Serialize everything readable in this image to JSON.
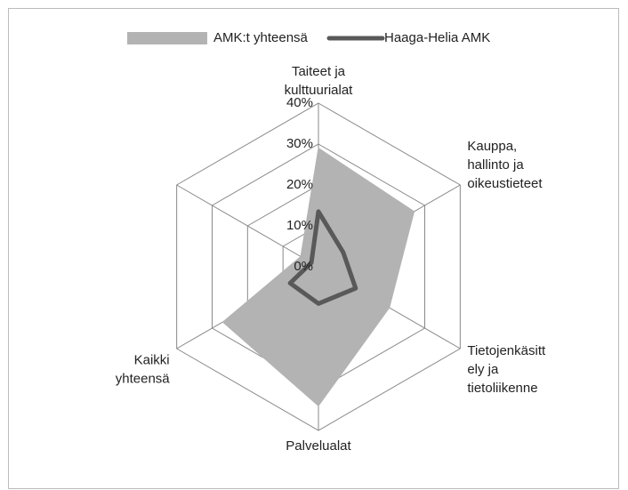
{
  "chart_data": {
    "type": "radar",
    "categories": [
      "Taiteet ja kulttuurialat",
      "Kauppa, hallinto ja oikeustieteet",
      "Tietojenkäsittely ja tietoliikenne",
      "Palvelualat",
      "Kaikki yhteensä",
      null
    ],
    "category_lines": [
      [
        "Taiteet ja",
        "kulttuurialat"
      ],
      [
        "Kauppa,",
        "hallinto ja",
        "oikeustieteet"
      ],
      [
        "Tietojenkäsitt",
        "ely ja",
        "tietoliikenne"
      ],
      [
        "Palvelualat"
      ],
      [
        "Kaikki",
        "yhteensä"
      ],
      null
    ],
    "series": [
      {
        "name": "AMK:t yhteensä",
        "color": "#b3b3b3",
        "style": "area",
        "values": [
          29,
          27,
          20,
          34,
          27,
          5
        ]
      },
      {
        "name": "Haaga-Helia AMK",
        "color": "#595959",
        "style": "line",
        "values": [
          13.5,
          7,
          10.5,
          9,
          8,
          2
        ]
      }
    ],
    "ylim": [
      0,
      40
    ],
    "yticks": [
      {
        "value": 0,
        "label": "0%"
      },
      {
        "value": 10,
        "label": "10%"
      },
      {
        "value": 20,
        "label": "20%"
      },
      {
        "value": 30,
        "label": "30%"
      },
      {
        "value": 40,
        "label": "40%"
      }
    ],
    "legend": "top"
  }
}
